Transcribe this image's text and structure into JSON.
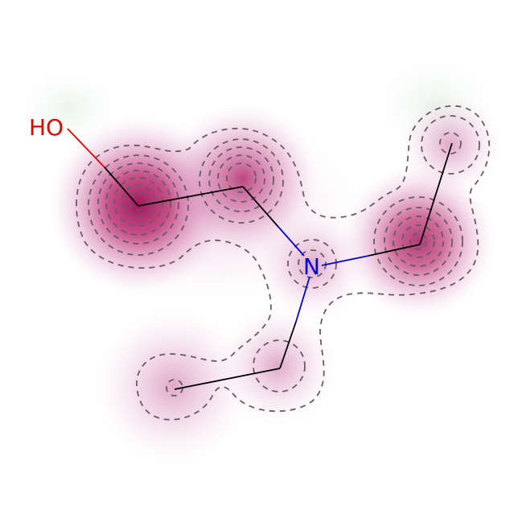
{
  "atoms": [
    {
      "id": "O1",
      "label": "HO",
      "color": "#e00000"
    },
    {
      "id": "C2",
      "label": "",
      "color": "#000000"
    },
    {
      "id": "C3",
      "label": "",
      "color": "#000000"
    },
    {
      "id": "N4",
      "label": "N",
      "color": "#0000e0"
    },
    {
      "id": "C5",
      "label": "",
      "color": "#000000"
    },
    {
      "id": "C6",
      "label": "",
      "color": "#000000"
    },
    {
      "id": "C7",
      "label": "",
      "color": "#000000"
    },
    {
      "id": "C8",
      "label": "",
      "color": "#000000"
    }
  ],
  "bonds": [
    {
      "from": "O1",
      "to": "C2"
    },
    {
      "from": "C2",
      "to": "C3"
    },
    {
      "from": "C3",
      "to": "N4"
    },
    {
      "from": "N4",
      "to": "C5"
    },
    {
      "from": "C5",
      "to": "C6"
    },
    {
      "from": "N4",
      "to": "C7"
    },
    {
      "from": "C7",
      "to": "C8"
    }
  ],
  "colors": {
    "heat": "#b0105c",
    "contour": "#6a5a63",
    "bond": "#000000",
    "oxygen": "#e00000",
    "nitrogen": "#0000e0"
  }
}
